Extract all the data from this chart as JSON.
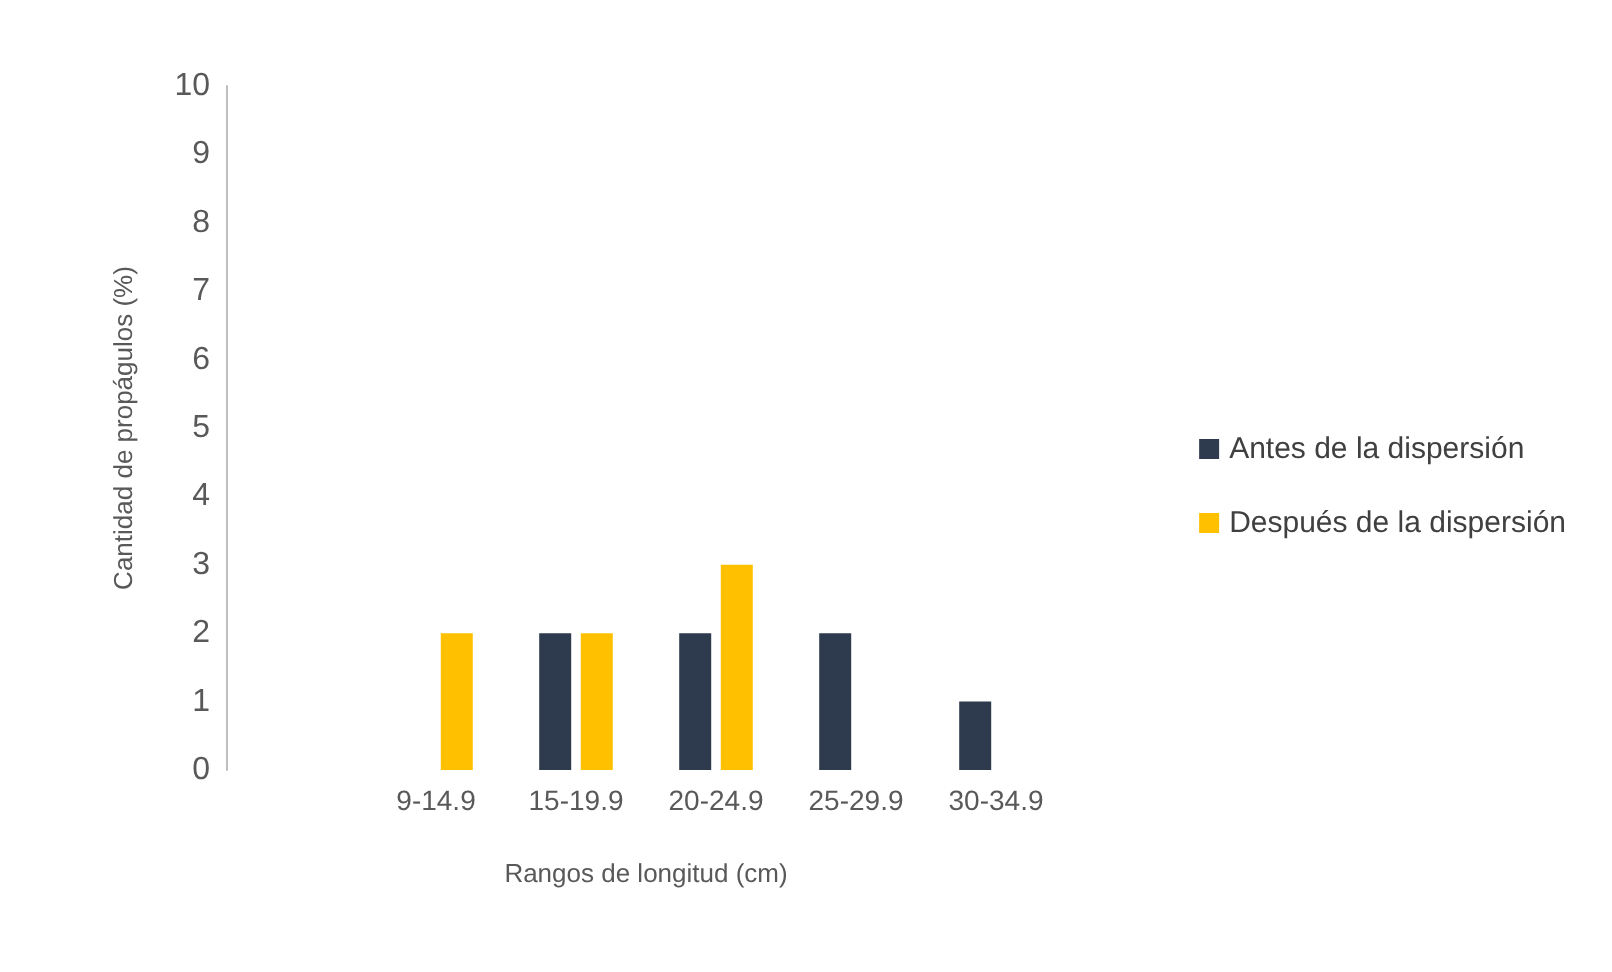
{
  "chart_data": {
    "type": "bar",
    "xlabel": "Rangos de longitud (cm)",
    "ylabel": "Cantidad de propágulos (%)",
    "categories": [
      null,
      "9-14.9",
      "15-19.9",
      "20-24.9",
      "25-29.9",
      "30-34.9"
    ],
    "series": [
      {
        "name": "Antes de la dispersión",
        "color": "#2e3a4e",
        "values": [
          null,
          null,
          2,
          2,
          2,
          1
        ]
      },
      {
        "name": "Después de la dispersión",
        "color": "#ffc000",
        "values": [
          null,
          2,
          2,
          3,
          null,
          null
        ]
      }
    ],
    "ylim": [
      0,
      10
    ],
    "yticks": [
      0,
      1,
      2,
      3,
      4,
      5,
      6,
      7,
      8,
      9,
      10
    ],
    "grid": false,
    "legend": "right"
  }
}
